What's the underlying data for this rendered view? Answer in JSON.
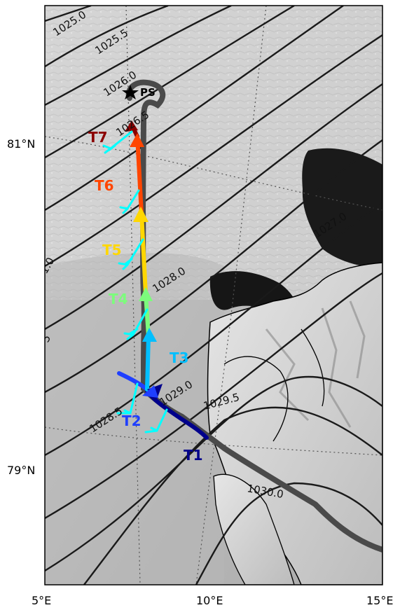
{
  "map": {
    "station": "PS",
    "isobar_labels": [
      "1025.0",
      "1025.5",
      "1026.0",
      "1026.5",
      "1027.0",
      "1028.0",
      "1028.5",
      "1029.0",
      "1029.5",
      "1030.0",
      "1.0",
      "5"
    ],
    "segments": [
      {
        "id": "T1",
        "label": "T1",
        "color": "#00008b"
      },
      {
        "id": "T2",
        "label": "T2",
        "color": "#1f3fff"
      },
      {
        "id": "T3",
        "label": "T3",
        "color": "#00bfff"
      },
      {
        "id": "T4",
        "label": "T4",
        "color": "#7cfc7c"
      },
      {
        "id": "T5",
        "label": "T5",
        "color": "#ffd700"
      },
      {
        "id": "T6",
        "label": "T6",
        "color": "#ff4500"
      },
      {
        "id": "T7",
        "label": "T7",
        "color": "#8b0000"
      }
    ],
    "wind_barb_color": "#00ffff",
    "track_color": "#555555",
    "axes": {
      "x_ticks": [
        "5°E",
        "10°E",
        "15°E"
      ],
      "y_ticks": [
        "81°N",
        "79°N"
      ]
    }
  }
}
